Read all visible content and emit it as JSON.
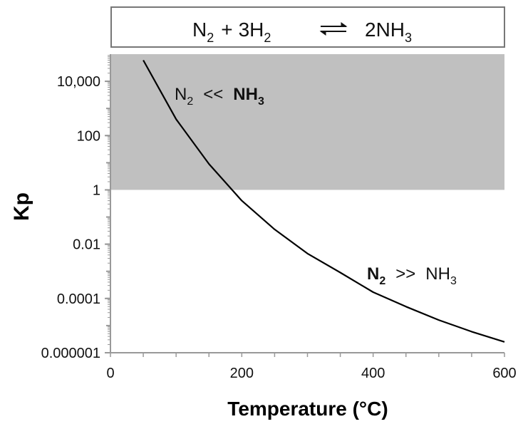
{
  "chart_data": {
    "type": "line",
    "equation": {
      "lhs_1": "N",
      "lhs_1_sub": "2",
      "plus": "+",
      "lhs_2": "3H",
      "lhs_2_sub": "2",
      "rhs": "2NH",
      "rhs_sub": "3"
    },
    "xlabel": "Temperature (°C)",
    "ylabel": "Kp",
    "xlim": [
      0,
      600
    ],
    "ylim": [
      1e-06,
      100000
    ],
    "yscale": "log",
    "xticks": [
      {
        "value": 0,
        "label": "0"
      },
      {
        "value": 200,
        "label": "200"
      },
      {
        "value": 400,
        "label": "400"
      },
      {
        "value": 600,
        "label": "600"
      }
    ],
    "yticks": [
      {
        "value": 10000,
        "label": "10,000"
      },
      {
        "value": 100,
        "label": "100"
      },
      {
        "value": 1,
        "label": "1"
      },
      {
        "value": 0.01,
        "label": "0.01"
      },
      {
        "value": 0.0001,
        "label": "0.0001"
      },
      {
        "value": 1e-06,
        "label": "0.000001"
      }
    ],
    "shaded_region": {
      "y_from": 1,
      "y_to": 100000,
      "color": "#c0c0c0"
    },
    "series": [
      {
        "color": "#000000",
        "x": [
          50,
          100,
          150,
          200,
          250,
          300,
          350,
          400,
          450,
          500,
          550,
          600
        ],
        "y": [
          60000,
          400,
          9,
          0.4,
          0.035,
          0.0045,
          0.0009,
          0.00017,
          5e-05,
          1.6e-05,
          6e-06,
          2.5e-06
        ]
      }
    ],
    "annotations": [
      {
        "id": "upper",
        "left": "N",
        "left_sub": "2",
        "op": "<<",
        "right": "NH",
        "right_sub": "3",
        "bold": "right"
      },
      {
        "id": "lower",
        "left": "N",
        "left_sub": "2",
        "op": ">>",
        "right": "NH",
        "right_sub": "3",
        "bold": "left"
      }
    ]
  }
}
